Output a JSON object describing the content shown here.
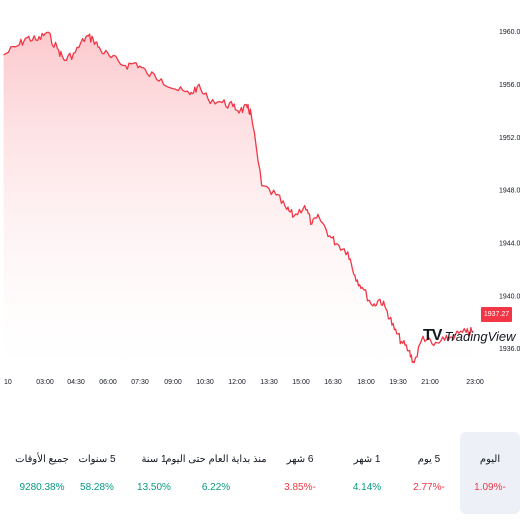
{
  "chart_data": {
    "type": "area",
    "y_ticks": [
      "1960.00",
      "1956.00",
      "1952.00",
      "1948.00",
      "1944.00",
      "1940.00",
      "1936.00"
    ],
    "x_ticks": [
      "10",
      "03:00",
      "04:30",
      "06:00",
      "07:30",
      "09:00",
      "10:30",
      "12:00",
      "13:30",
      "15:00",
      "16:30",
      "18:00",
      "19:30",
      "21:00",
      "23:00"
    ],
    "x": [
      "01:40",
      "02:20",
      "02:45",
      "03:15",
      "03:40",
      "04:10",
      "04:30",
      "05:00",
      "05:30",
      "05:50",
      "06:10",
      "06:40",
      "07:20",
      "07:50",
      "08:20",
      "09:00",
      "09:40",
      "10:20",
      "10:40",
      "11:10",
      "11:50",
      "12:20",
      "12:40",
      "13:00",
      "13:10",
      "13:40",
      "14:20",
      "14:50",
      "15:10",
      "15:40",
      "16:00",
      "16:20",
      "16:50",
      "17:10",
      "17:40",
      "18:00",
      "18:20",
      "18:50",
      "19:10",
      "19:30",
      "19:50",
      "20:10",
      "20:30",
      "20:45",
      "21:10",
      "21:40",
      "22:10",
      "22:40",
      "23:10",
      "23:30"
    ],
    "y": [
      1958.2,
      1958.9,
      1959.5,
      1959.3,
      1959.9,
      1958.7,
      1957.8,
      1958.4,
      1959.6,
      1959.4,
      1958.6,
      1958.0,
      1957.4,
      1957.6,
      1956.8,
      1956.4,
      1955.6,
      1955.2,
      1955.8,
      1954.9,
      1954.6,
      1954.3,
      1954.0,
      1954.2,
      1953.8,
      1948.3,
      1947.6,
      1946.5,
      1946.0,
      1946.8,
      1945.4,
      1945.9,
      1944.5,
      1943.9,
      1943.3,
      1941.5,
      1940.6,
      1939.2,
      1939.7,
      1938.8,
      1937.4,
      1936.5,
      1935.8,
      1934.9,
      1936.9,
      1936.2,
      1936.6,
      1937.0,
      1937.2,
      1937.27
    ],
    "ylim": [
      1934.5,
      1961.0
    ],
    "line_color": "#f23645",
    "fill_color": "#fdd7d9",
    "current_price": "1937.27"
  },
  "branding": {
    "mark": "TV",
    "word": "TradingView"
  },
  "periods": [
    {
      "label": "جميع الأوقات",
      "value": "9280.38%",
      "sign": "pos"
    },
    {
      "label": "5 سنوات",
      "value": "58.28%",
      "sign": "pos"
    },
    {
      "label": "1 سنة",
      "value": "13.50%",
      "sign": "pos"
    },
    {
      "label": "منذ بداية العام حتى اليوم",
      "value": "6.22%",
      "sign": "pos"
    },
    {
      "label": "6 شهر",
      "value": "3.85%-",
      "sign": "neg"
    },
    {
      "label": "1 شهر",
      "value": "4.14%",
      "sign": "pos"
    },
    {
      "label": "5 يوم",
      "value": "2.77%-",
      "sign": "neg"
    },
    {
      "label": "اليوم",
      "value": "1.09%-",
      "sign": "neg",
      "active": true
    }
  ]
}
